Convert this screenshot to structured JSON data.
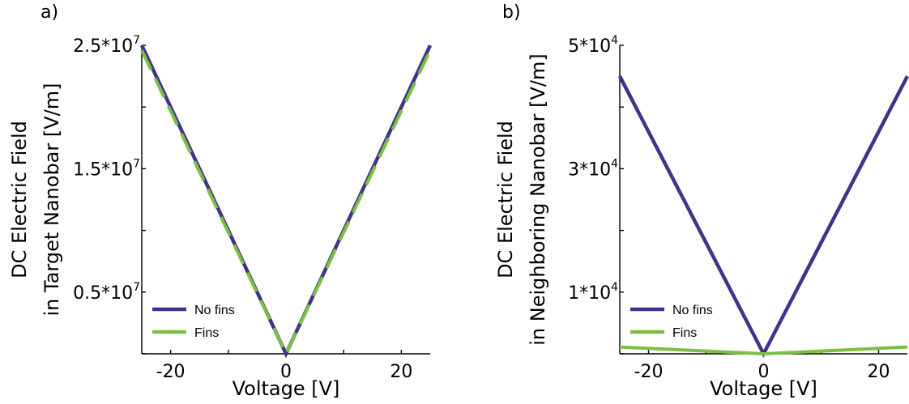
{
  "chart_data": [
    {
      "type": "line",
      "panel_label": "a)",
      "xlabel": "Voltage [V]",
      "ylabel_lines": [
        "DC Electric Field",
        "in Target Nanobar [V/m]"
      ],
      "xlim": [
        -25,
        25
      ],
      "ylim": [
        0,
        25000000
      ],
      "x_ticks": [
        {
          "value": -20,
          "label": "-20"
        },
        {
          "value": 0,
          "label": "0"
        },
        {
          "value": 20,
          "label": "20"
        }
      ],
      "x_minor_ticks": [
        -10,
        10
      ],
      "y_ticks": [
        {
          "value": 5000000,
          "base": "0.5*10",
          "exp": "7"
        },
        {
          "value": 15000000,
          "base": "1.5*10",
          "exp": "7"
        },
        {
          "value": 25000000,
          "base": "2.5*10",
          "exp": "7"
        }
      ],
      "y_minor_ticks": [
        0,
        10000000,
        20000000
      ],
      "series": [
        {
          "name": "No fins",
          "color": "#40348a",
          "style": "solid",
          "x": [
            -25,
            0,
            25
          ],
          "y": [
            25000000,
            0,
            25000000
          ]
        },
        {
          "name": "Fins",
          "color": "#7bc043",
          "style": "dashed",
          "x": [
            -25,
            0,
            25
          ],
          "y": [
            24600000,
            0,
            24600000
          ]
        }
      ],
      "legend_position": "bottom-left",
      "grid": false
    },
    {
      "type": "line",
      "panel_label": "b)",
      "xlabel": "Voltage [V]",
      "ylabel_lines": [
        "DC Electric Field",
        "in Neighboring Nanobar [V/m]"
      ],
      "xlim": [
        -25,
        25
      ],
      "ylim": [
        0,
        50000
      ],
      "x_ticks": [
        {
          "value": -20,
          "label": "-20"
        },
        {
          "value": 0,
          "label": "0"
        },
        {
          "value": 20,
          "label": "20"
        }
      ],
      "x_minor_ticks": [
        -10,
        10
      ],
      "y_ticks": [
        {
          "value": 10000,
          "base": "1*10",
          "exp": "4"
        },
        {
          "value": 30000,
          "base": "3*10",
          "exp": "4"
        },
        {
          "value": 50000,
          "base": "5*10",
          "exp": "4"
        }
      ],
      "y_minor_ticks": [
        0,
        20000,
        40000
      ],
      "series": [
        {
          "name": "No fins",
          "color": "#40348a",
          "style": "solid",
          "x": [
            -25,
            0,
            25
          ],
          "y": [
            45000,
            0,
            45000
          ]
        },
        {
          "name": "Fins",
          "color": "#7bc043",
          "style": "solid",
          "x": [
            -25,
            0,
            25
          ],
          "y": [
            1100,
            0,
            1100
          ]
        }
      ],
      "legend_position": "bottom-left",
      "grid": false
    }
  ]
}
